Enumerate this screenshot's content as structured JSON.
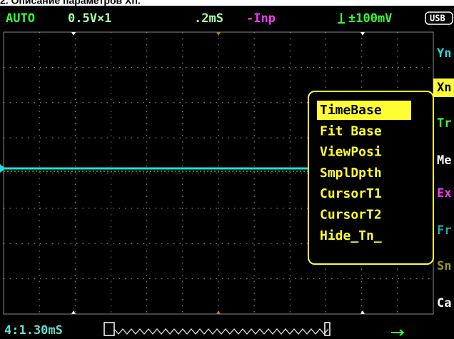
{
  "header": {
    "caption": "2. Описание параметров Xn."
  },
  "status": {
    "mode": "AUTO",
    "volts": "0.5V×1",
    "time": ".2mS",
    "input": "-Inp",
    "trigger": "±100mV",
    "usb": "USB"
  },
  "side_menu": [
    "Yn",
    "Xn",
    "Tr",
    "Me",
    "Ex",
    "Fr",
    "Sn",
    "Ca"
  ],
  "popup": [
    "TimeBase",
    "Fit Base",
    "ViewPosi",
    "SmplDpth",
    "CursorT1",
    "CursorT2",
    "Hide_Tn_"
  ],
  "footer": {
    "position": "4:1.30mS"
  }
}
